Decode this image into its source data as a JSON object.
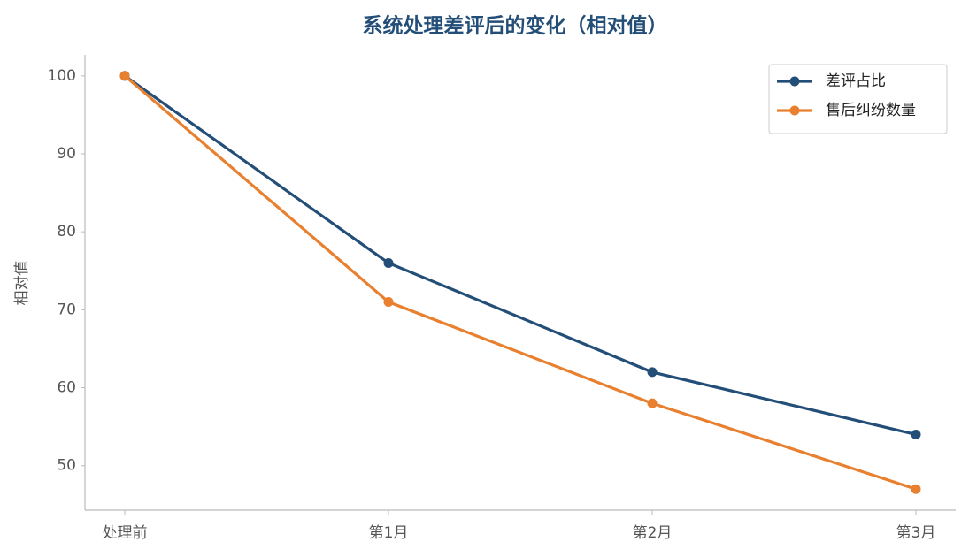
{
  "chart_data": {
    "type": "line",
    "title": "系统处理差评后的变化（相对值）",
    "y_label": "相对值",
    "categories": [
      "处理前",
      "第1月",
      "第2月",
      "第3月"
    ],
    "series": [
      {
        "name": "差评占比",
        "color": "#234e78",
        "values": [
          100,
          76,
          62,
          54
        ]
      },
      {
        "name": "售后纠纷数量",
        "color": "#e8802f",
        "values": [
          100,
          71,
          58,
          47
        ]
      }
    ],
    "ylim": [
      44.3,
      102.7
    ],
    "yticks": [
      50,
      60,
      70,
      80,
      90,
      100
    ],
    "grid": false,
    "legend": "upper right"
  }
}
